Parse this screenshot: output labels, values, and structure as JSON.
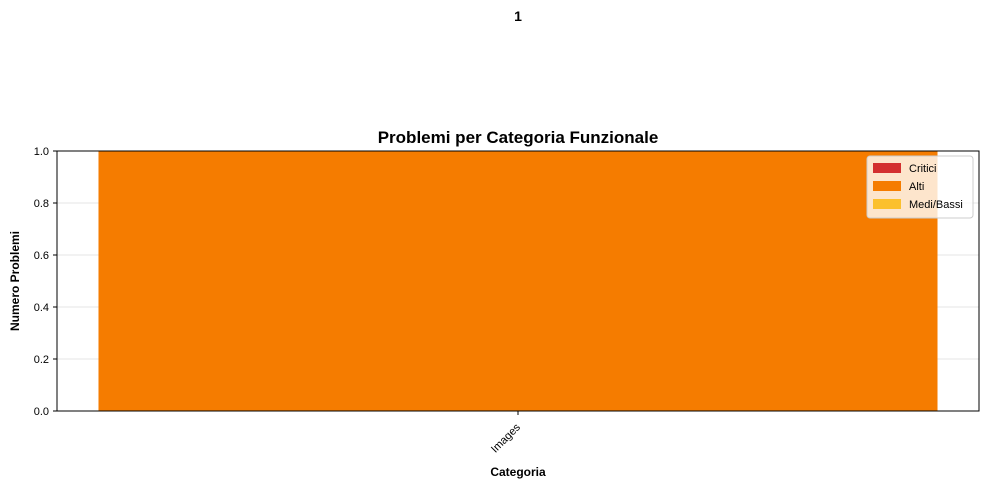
{
  "chart_data": {
    "type": "bar",
    "stacked": true,
    "title": "Problemi per Categoria Funzionale",
    "xlabel": "Categoria",
    "ylabel": "Numero Problemi",
    "categories": [
      "Images"
    ],
    "series": [
      {
        "name": "Critici",
        "values": [
          0
        ],
        "color": "#d32f2f"
      },
      {
        "name": "Alti",
        "values": [
          1
        ],
        "color": "#f57c00"
      },
      {
        "name": "Medi/Bassi",
        "values": [
          0
        ],
        "color": "#fbc02d"
      }
    ],
    "ylim": [
      0,
      1.0
    ],
    "yticks": [
      "0.0",
      "0.2",
      "0.4",
      "0.6",
      "0.8",
      "1.0"
    ],
    "grid": "horizontal",
    "legend_position": "top-right",
    "data_labels": [
      "1"
    ]
  }
}
